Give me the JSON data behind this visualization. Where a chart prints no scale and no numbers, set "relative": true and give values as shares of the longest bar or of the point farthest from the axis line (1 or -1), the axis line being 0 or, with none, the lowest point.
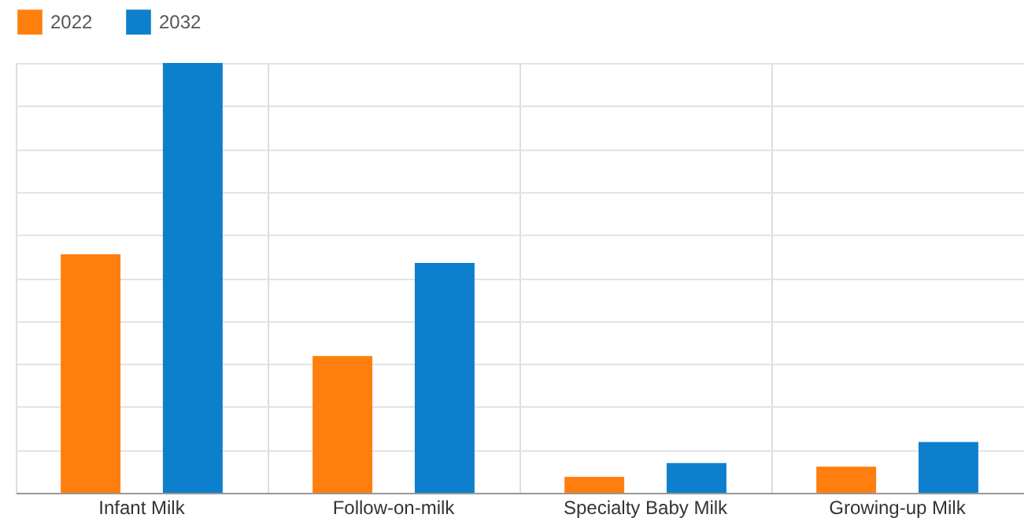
{
  "chart_data": {
    "type": "bar",
    "relative": true,
    "categories": [
      "Infant Milk",
      "Follow-on-milk",
      "Specialty Baby Milk",
      "Growing-up Milk"
    ],
    "series": [
      {
        "name": "2022",
        "color": "#ff7f0e",
        "values": [
          0.555,
          0.318,
          0.037,
          0.061
        ]
      },
      {
        "name": "2032",
        "color": "#0e7fcd",
        "values": [
          1,
          0.535,
          0.069,
          0.118
        ]
      }
    ],
    "grid": true,
    "legend": "top"
  }
}
